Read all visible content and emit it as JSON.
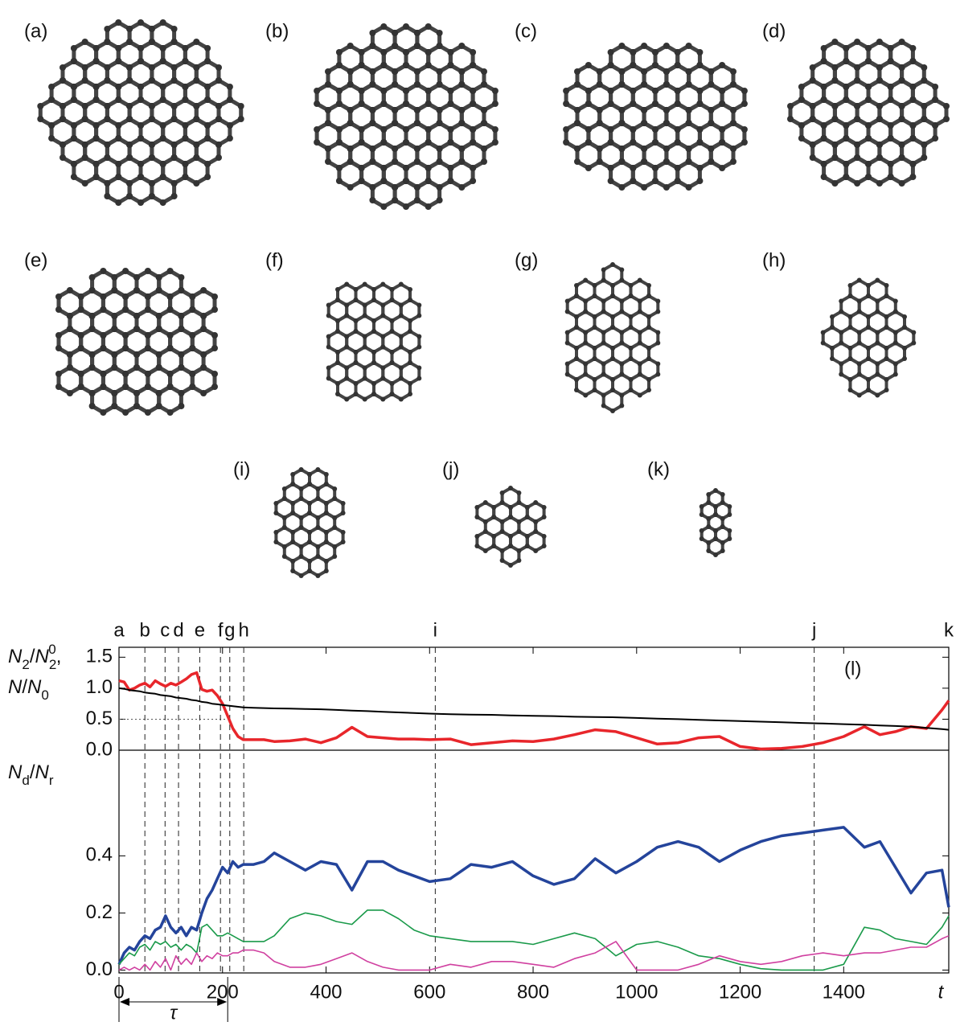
{
  "images": {
    "labels": [
      "(a)",
      "(b)",
      "(c)",
      "(d)",
      "(e)",
      "(f)",
      "(g)",
      "(h)",
      "(i)",
      "(j)",
      "(k)"
    ]
  },
  "chart_data": [
    {
      "type": "line",
      "ylabel_lines": [
        [
          {
            "t": "N",
            "style": "italic"
          },
          {
            "t": "2",
            "style": "sub"
          },
          {
            "t": "/",
            "style": "normal"
          },
          {
            "t": "N",
            "style": "italic"
          },
          {
            "t": "2",
            "style": "sub"
          },
          {
            "t": "0",
            "style": "sup"
          },
          {
            "t": ",",
            "style": "normal"
          }
        ],
        [
          {
            "t": "N",
            "style": "italic"
          },
          {
            "t": "/",
            "style": "normal"
          },
          {
            "t": "N",
            "style": "italic"
          },
          {
            "t": "0",
            "style": "sub"
          }
        ]
      ],
      "x": [
        0,
        10,
        20,
        30,
        40,
        50,
        60,
        70,
        80,
        90,
        100,
        110,
        120,
        130,
        140,
        150,
        160,
        170,
        180,
        190,
        200,
        210,
        220,
        230,
        240,
        260,
        280,
        300,
        330,
        360,
        390,
        420,
        450,
        480,
        510,
        540,
        570,
        600,
        640,
        680,
        720,
        760,
        800,
        840,
        880,
        920,
        960,
        1000,
        1040,
        1080,
        1120,
        1160,
        1200,
        1240,
        1280,
        1320,
        1360,
        1400,
        1440,
        1470,
        1500,
        1530,
        1560,
        1590,
        1603
      ],
      "series": [
        {
          "color": "#e8262b",
          "values": [
            1.12,
            1.1,
            0.97,
            1.0,
            1.05,
            1.08,
            1.02,
            1.12,
            1.07,
            1.03,
            1.08,
            1.05,
            1.1,
            1.15,
            1.22,
            1.25,
            0.98,
            0.95,
            0.97,
            0.88,
            0.75,
            0.55,
            0.35,
            0.22,
            0.17,
            0.17,
            0.17,
            0.14,
            0.15,
            0.18,
            0.12,
            0.2,
            0.37,
            0.22,
            0.2,
            0.18,
            0.18,
            0.17,
            0.18,
            0.09,
            0.12,
            0.15,
            0.14,
            0.18,
            0.25,
            0.33,
            0.3,
            0.2,
            0.1,
            0.12,
            0.2,
            0.22,
            0.06,
            0.02,
            0.03,
            0.06,
            0.12,
            0.22,
            0.38,
            0.25,
            0.3,
            0.38,
            0.35,
            0.65,
            0.8
          ]
        },
        {
          "color": "#000000",
          "values": [
            1.0,
            0.99,
            0.97,
            0.96,
            0.95,
            0.93,
            0.92,
            0.91,
            0.89,
            0.88,
            0.87,
            0.85,
            0.84,
            0.83,
            0.81,
            0.8,
            0.78,
            0.77,
            0.75,
            0.74,
            0.73,
            0.72,
            0.71,
            0.7,
            0.69,
            0.685,
            0.68,
            0.675,
            0.67,
            0.665,
            0.66,
            0.65,
            0.64,
            0.63,
            0.62,
            0.61,
            0.6,
            0.59,
            0.58,
            0.575,
            0.57,
            0.56,
            0.555,
            0.55,
            0.54,
            0.535,
            0.53,
            0.52,
            0.51,
            0.5,
            0.49,
            0.48,
            0.47,
            0.46,
            0.45,
            0.44,
            0.43,
            0.42,
            0.41,
            0.4,
            0.39,
            0.38,
            0.36,
            0.34,
            0.33
          ]
        }
      ],
      "xlim": [
        0,
        1603
      ],
      "ylim": [
        0,
        1.66
      ],
      "yticks": [
        {
          "value": 0,
          "label": "0.0"
        },
        {
          "value": 0.5,
          "label": "0.5"
        },
        {
          "value": 1,
          "label": "1.0"
        },
        {
          "value": 1.5,
          "label": "1.5"
        }
      ],
      "reference_line": {
        "y": 0.5,
        "x_range": [
          0,
          210
        ]
      },
      "markers": [
        {
          "label": "a",
          "x": 0
        },
        {
          "label": "b",
          "x": 50
        },
        {
          "label": "c",
          "x": 89
        },
        {
          "label": "d",
          "x": 115
        },
        {
          "label": "e",
          "x": 156
        },
        {
          "label": "f",
          "x": 196
        },
        {
          "label": "g",
          "x": 214
        },
        {
          "label": "h",
          "x": 241
        },
        {
          "label": "i",
          "x": 611
        },
        {
          "label": "j",
          "x": 1343
        },
        {
          "label": "k",
          "x": 1603
        }
      ],
      "annotation": "(l)"
    },
    {
      "type": "line",
      "ylabel_lines": [
        [
          {
            "t": "N",
            "style": "italic"
          },
          {
            "t": "d",
            "style": "sub"
          },
          {
            "t": "/",
            "style": "normal"
          },
          {
            "t": "N",
            "style": "italic"
          },
          {
            "t": "r",
            "style": "sub"
          }
        ]
      ],
      "x": [
        0,
        10,
        20,
        30,
        40,
        50,
        60,
        70,
        80,
        90,
        100,
        110,
        120,
        130,
        140,
        150,
        160,
        170,
        180,
        190,
        200,
        210,
        220,
        230,
        240,
        260,
        280,
        300,
        330,
        360,
        390,
        420,
        450,
        480,
        510,
        540,
        570,
        600,
        640,
        680,
        720,
        760,
        800,
        840,
        880,
        920,
        960,
        1000,
        1040,
        1080,
        1120,
        1160,
        1200,
        1240,
        1280,
        1320,
        1360,
        1400,
        1440,
        1470,
        1500,
        1530,
        1560,
        1590,
        1603
      ],
      "series": [
        {
          "color": "#24449b",
          "values": [
            0.02,
            0.06,
            0.08,
            0.07,
            0.1,
            0.12,
            0.11,
            0.14,
            0.15,
            0.19,
            0.15,
            0.13,
            0.15,
            0.12,
            0.15,
            0.14,
            0.2,
            0.25,
            0.28,
            0.32,
            0.36,
            0.34,
            0.38,
            0.36,
            0.37,
            0.37,
            0.38,
            0.41,
            0.38,
            0.35,
            0.38,
            0.37,
            0.28,
            0.38,
            0.38,
            0.35,
            0.33,
            0.31,
            0.32,
            0.37,
            0.36,
            0.38,
            0.33,
            0.3,
            0.32,
            0.39,
            0.34,
            0.38,
            0.43,
            0.45,
            0.43,
            0.38,
            0.42,
            0.45,
            0.47,
            0.48,
            0.49,
            0.5,
            0.43,
            0.45,
            0.36,
            0.27,
            0.34,
            0.35,
            0.22
          ]
        },
        {
          "color": "#1a9a4a",
          "values": [
            0.02,
            0.04,
            0.06,
            0.05,
            0.08,
            0.09,
            0.07,
            0.1,
            0.09,
            0.1,
            0.08,
            0.09,
            0.07,
            0.09,
            0.08,
            0.06,
            0.15,
            0.16,
            0.14,
            0.12,
            0.12,
            0.13,
            0.12,
            0.11,
            0.1,
            0.1,
            0.1,
            0.12,
            0.18,
            0.2,
            0.19,
            0.17,
            0.16,
            0.21,
            0.21,
            0.18,
            0.14,
            0.12,
            0.11,
            0.1,
            0.1,
            0.1,
            0.09,
            0.11,
            0.13,
            0.11,
            0.05,
            0.09,
            0.1,
            0.08,
            0.05,
            0.04,
            0.02,
            0.005,
            0,
            0,
            0,
            0.02,
            0.15,
            0.14,
            0.11,
            0.1,
            0.09,
            0.15,
            0.19
          ]
        },
        {
          "color": "#d040a0",
          "values": [
            0,
            0.01,
            0,
            0.01,
            0,
            0.02,
            0,
            0.03,
            0.01,
            0.04,
            0,
            0.05,
            0.02,
            0.04,
            0.02,
            0.06,
            0.03,
            0.05,
            0.04,
            0.06,
            0.05,
            0.05,
            0.06,
            0.06,
            0.07,
            0.07,
            0.06,
            0.03,
            0.01,
            0.01,
            0.02,
            0.04,
            0.06,
            0.03,
            0.01,
            0,
            0,
            0,
            0.02,
            0.01,
            0.03,
            0.03,
            0.02,
            0.01,
            0.04,
            0.06,
            0.1,
            0,
            0,
            0,
            0.02,
            0.05,
            0.03,
            0.02,
            0.03,
            0.05,
            0.06,
            0.05,
            0.06,
            0.06,
            0.07,
            0.08,
            0.08,
            0.11,
            0.12
          ]
        }
      ],
      "xlim": [
        0,
        1603
      ],
      "ylim": [
        -0.01,
        0.77
      ],
      "xticks": [
        0,
        200,
        400,
        600,
        800,
        1000,
        1200,
        1400
      ],
      "xlabel": "t",
      "yticks": [
        {
          "value": 0,
          "label": "0.0"
        },
        {
          "value": 0.2,
          "label": "0.2"
        },
        {
          "value": 0.4,
          "label": "0.4"
        }
      ],
      "span_annotation": {
        "text": "τ",
        "x_range": [
          0,
          210
        ]
      }
    }
  ]
}
